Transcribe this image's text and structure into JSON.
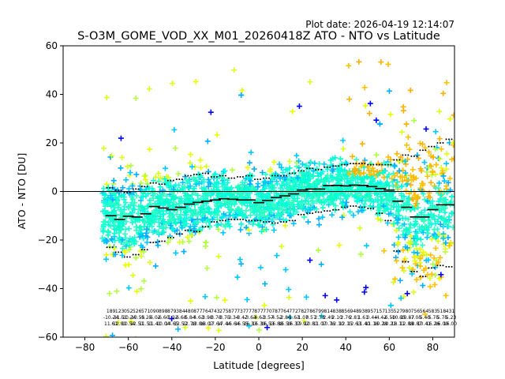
{
  "plot_date": "Plot date: 2026-04-19 12:14:07",
  "chart_data": {
    "type": "scatter",
    "title": "S-O3M_GOME_VOD_XX_M01_20260418Z ATO - NTO vs Latitude",
    "xlabel": "Latitude [degrees]",
    "ylabel": "ATO - NTO [DU]",
    "xlim": [
      -90,
      90
    ],
    "ylim": [
      -60,
      60
    ],
    "xticks": [
      -80,
      -60,
      -40,
      -20,
      0,
      20,
      40,
      60,
      80
    ],
    "yticks": [
      -60,
      -40,
      -20,
      0,
      20,
      40,
      60
    ],
    "grid": false,
    "legend": "none",
    "reference_line_y": 0,
    "bin_width": 4,
    "bin_centers": [
      -68,
      -64,
      -60,
      -56,
      -52,
      -48,
      -44,
      -40,
      -36,
      -32,
      -28,
      -24,
      -20,
      -16,
      -12,
      -8,
      -4,
      0,
      4,
      8,
      12,
      16,
      20,
      24,
      28,
      32,
      36,
      40,
      44,
      48,
      52,
      56,
      60,
      64,
      68,
      72,
      76,
      80,
      84,
      88
    ],
    "bin_mean": [
      -10,
      -11.5,
      -10.2,
      -10.5,
      -9.2,
      -6.2,
      -6.8,
      -7.5,
      -6.5,
      -5.2,
      -4.5,
      -4.0,
      -3.5,
      -3.0,
      -3.2,
      -3.5,
      -3.5,
      -4.6,
      -3.7,
      -2.5,
      -1.8,
      -1.0,
      0.6,
      1.0,
      1.0,
      2.4,
      2.5,
      2.3,
      2.6,
      2.5,
      2.0,
      1.2,
      0.6,
      -4.0,
      -6.5,
      -10.5,
      -10.5,
      -7.5,
      -5.5,
      -5.5
    ],
    "bin_upper": [
      1.5,
      0.5,
      -0.5,
      1.0,
      2.0,
      3.5,
      3.0,
      4.5,
      5.0,
      6.5,
      7.0,
      7.5,
      6.0,
      6.5,
      5.5,
      6.0,
      6.5,
      5.0,
      5.5,
      6.5,
      6.5,
      7.5,
      8.5,
      9.5,
      9.0,
      10.0,
      10.5,
      11.0,
      11.5,
      11.5,
      11.0,
      11.0,
      11.0,
      13.0,
      15.0,
      14.5,
      17.0,
      18.5,
      20.0,
      21.5
    ],
    "bin_lower": [
      -23.0,
      -25.0,
      -27.0,
      -26.0,
      -24.0,
      -21.0,
      -20.5,
      -19.0,
      -17.5,
      -16.0,
      -16.5,
      -14.5,
      -12.5,
      -12.0,
      -11.5,
      -11.5,
      -12.0,
      -12.0,
      -12.5,
      -13.0,
      -12.5,
      -12.0,
      -9.5,
      -9.0,
      -8.5,
      -8.0,
      -7.5,
      -6.5,
      -6.0,
      -6.5,
      -7.0,
      -9.0,
      -12.0,
      -24.5,
      -29.0,
      -33.0,
      -35.0,
      -31.5,
      -30.5,
      -31.0
    ],
    "bin_annotations": [
      [
        "189",
        "-10.24",
        "11.61"
      ],
      [
        "123",
        "-11.51",
        "12.81"
      ],
      [
        "052",
        "-10.24",
        "10.54"
      ],
      [
        "526",
        "-10.55",
        "12.51"
      ],
      [
        "571",
        "-9.25",
        "11.51"
      ],
      [
        "090",
        "-6.02",
        "11.41"
      ],
      [
        "898",
        "-6.60",
        "10.04"
      ],
      [
        "879",
        "-7.22",
        "14.65"
      ],
      [
        "384",
        "-6.68",
        "12.57"
      ],
      [
        "480",
        "-5.84",
        "12.78"
      ],
      [
        "877",
        "-4.63",
        "13.86"
      ],
      [
        "764",
        "-3.98",
        "18.07"
      ],
      [
        "743",
        "-3.78",
        "17.64"
      ],
      [
        "275",
        "-3.75",
        "17.44"
      ],
      [
        "877",
        "-3.34",
        "16.64"
      ],
      [
        "737",
        "-3.42",
        "16.55"
      ],
      [
        "777",
        "-3.63",
        "16.33"
      ],
      [
        "877",
        "-4.63",
        "16.39"
      ],
      [
        "770",
        "-3.57",
        "16.53"
      ],
      [
        "787",
        "-4.52",
        "16.88"
      ],
      [
        "764",
        "-2.86",
        "16.59"
      ],
      [
        "772",
        "-1.63",
        "16.37"
      ],
      [
        "782",
        "-1.07",
        "19.92"
      ],
      [
        "786",
        "0.57",
        "10.81"
      ],
      [
        "799",
        "2.78",
        "11.07"
      ],
      [
        "814",
        "2.49",
        "10.76"
      ],
      [
        "838",
        "2.10",
        "12.10"
      ],
      [
        "856",
        "2.76",
        "12.15"
      ],
      [
        "948",
        "2.81",
        "12.63"
      ],
      [
        "938",
        "1.61",
        "11.40"
      ],
      [
        "957",
        "0.44",
        "11.16"
      ],
      [
        "157",
        "-4.42",
        "10.28"
      ],
      [
        "135",
        "-6.50",
        "10.21"
      ],
      [
        "527",
        "-10.95",
        "18.11"
      ],
      [
        "980",
        "-10.87",
        "12.88"
      ],
      [
        "756",
        "-7.05",
        "18.87"
      ],
      [
        "564",
        "-5.40",
        "10.41"
      ],
      [
        "583",
        "-5.75",
        "16.26"
      ],
      [
        "518",
        "-5.75",
        "16.00"
      ],
      [
        "431",
        "-5.23",
        "16.00"
      ]
    ],
    "series": [
      {
        "legend": "",
        "colormap": "jet",
        "values": "dense point cloud of individual measurements"
      }
    ]
  }
}
